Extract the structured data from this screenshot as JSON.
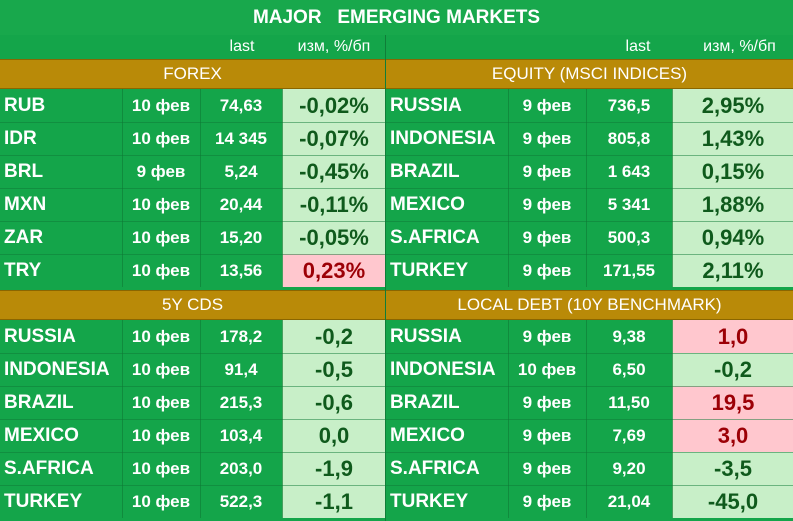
{
  "title": "MAJOR   EMERGING MARKETS",
  "header": {
    "last": "last",
    "change": "изм, %/бп"
  },
  "sections": {
    "forex": {
      "title": "FOREX",
      "rows": [
        {
          "name": "RUB",
          "date": "10 фев",
          "last": "74,63",
          "change": "-0,02%",
          "status": "positive"
        },
        {
          "name": "IDR",
          "date": "10 фев",
          "last": "14 345",
          "change": "-0,07%",
          "status": "positive"
        },
        {
          "name": "BRL",
          "date": "9 фев",
          "last": "5,24",
          "change": "-0,45%",
          "status": "positive"
        },
        {
          "name": "MXN",
          "date": "10 фев",
          "last": "20,44",
          "change": "-0,11%",
          "status": "positive"
        },
        {
          "name": "ZAR",
          "date": "10 фев",
          "last": "15,20",
          "change": "-0,05%",
          "status": "positive"
        },
        {
          "name": "TRY",
          "date": "10 фев",
          "last": "13,56",
          "change": "0,23%",
          "status": "negative"
        }
      ]
    },
    "equity": {
      "title": "EQUITY (MSCI INDICES)",
      "rows": [
        {
          "name": "RUSSIA",
          "date": "9 фев",
          "last": "736,5",
          "change": "2,95%",
          "status": "positive"
        },
        {
          "name": "INDONESIA",
          "date": "9 фев",
          "last": "805,8",
          "change": "1,43%",
          "status": "positive"
        },
        {
          "name": "BRAZIL",
          "date": "9 фев",
          "last": "1 643",
          "change": "0,15%",
          "status": "positive"
        },
        {
          "name": "MEXICO",
          "date": "9 фев",
          "last": "5 341",
          "change": "1,88%",
          "status": "positive"
        },
        {
          "name": "S.AFRICA",
          "date": "9 фев",
          "last": "500,3",
          "change": "0,94%",
          "status": "positive"
        },
        {
          "name": "TURKEY",
          "date": "9 фев",
          "last": "171,55",
          "change": "2,11%",
          "status": "positive"
        }
      ]
    },
    "cds": {
      "title": "5Y CDS",
      "rows": [
        {
          "name": "RUSSIA",
          "date": "10 фев",
          "last": "178,2",
          "change": "-0,2",
          "status": "positive"
        },
        {
          "name": "INDONESIA",
          "date": "10 фев",
          "last": "91,4",
          "change": "-0,5",
          "status": "positive"
        },
        {
          "name": "BRAZIL",
          "date": "10 фев",
          "last": "215,3",
          "change": "-0,6",
          "status": "positive"
        },
        {
          "name": "MEXICO",
          "date": "10 фев",
          "last": "103,4",
          "change": "0,0",
          "status": "positive"
        },
        {
          "name": "S.AFRICA",
          "date": "10 фев",
          "last": "203,0",
          "change": "-1,9",
          "status": "positive"
        },
        {
          "name": "TURKEY",
          "date": "10 фев",
          "last": "522,3",
          "change": "-1,1",
          "status": "positive"
        }
      ]
    },
    "local_debt": {
      "title": "LOCAL DEBT (10Y BENCHMARK)",
      "rows": [
        {
          "name": "RUSSIA",
          "date": "9 фев",
          "last": "9,38",
          "change": "1,0",
          "status": "negative"
        },
        {
          "name": "INDONESIA",
          "date": "10 фев",
          "last": "6,50",
          "change": "-0,2",
          "status": "positive"
        },
        {
          "name": "BRAZIL",
          "date": "9 фев",
          "last": "11,50",
          "change": "19,5",
          "status": "negative"
        },
        {
          "name": "MEXICO",
          "date": "9 фев",
          "last": "7,69",
          "change": "3,0",
          "status": "negative"
        },
        {
          "name": "S.AFRICA",
          "date": "9 фев",
          "last": "9,20",
          "change": "-3,5",
          "status": "positive"
        },
        {
          "name": "TURKEY",
          "date": "9 фев",
          "last": "21,04",
          "change": "-45,0",
          "status": "positive"
        }
      ]
    }
  },
  "colors": {
    "background": "#14a54a",
    "band": "#b98a08",
    "positive_fill": "#c8efc8",
    "positive_text": "#0f5a1c",
    "negative_fill": "#ffc7ce",
    "negative_text": "#9c0006"
  }
}
